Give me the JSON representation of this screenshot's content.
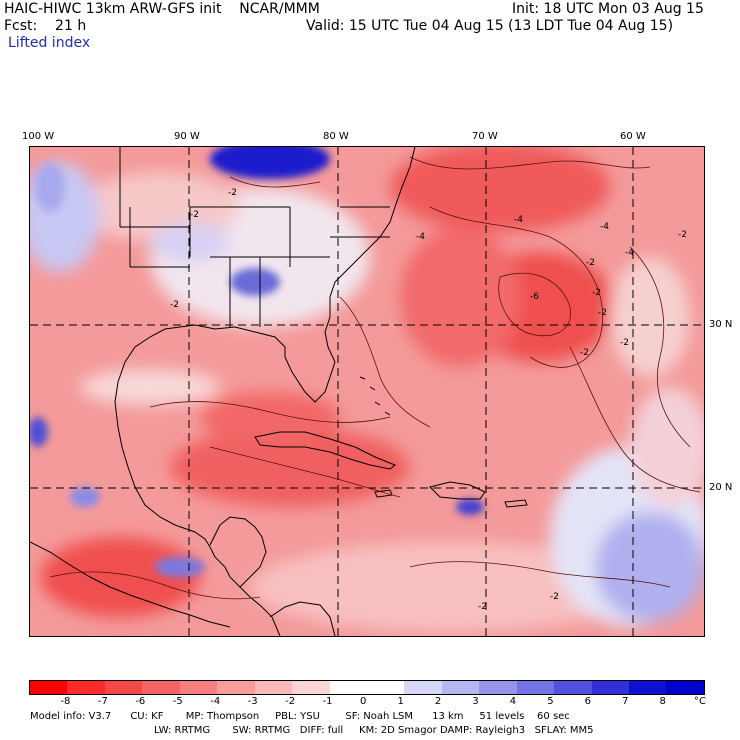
{
  "header": {
    "title_left": "HAIC-HIWC 13km ARW-GFS init    NCAR/MMM",
    "init": "Init: 18 UTC Mon 03 Aug 15",
    "fcst": "Fcst:    21 h",
    "valid": "Valid: 15 UTC Tue 04 Aug 15 (13 LDT Tue 04 Aug 15)",
    "field": "Lifted index"
  },
  "map": {
    "lon_labels": [
      "100 W",
      "90 W",
      "80 W",
      "70 W",
      "60 W"
    ],
    "lat_labels": [
      "30 N",
      "20 N"
    ],
    "contour_labels": [
      "-2",
      "-2",
      "-4",
      "-4",
      "-4",
      "-6",
      "-2",
      "-2",
      "-2",
      "-2",
      "-2",
      "-2",
      "-2",
      "-4",
      "-2",
      "-2"
    ]
  },
  "colorbar": {
    "labels": [
      "-8",
      "-7",
      "-6",
      "-5",
      "-4",
      "-3",
      "-2",
      "-1",
      "0",
      "1",
      "2",
      "3",
      "4",
      "5",
      "6",
      "7",
      "8"
    ],
    "unit": "°C",
    "colors": [
      "#ff0000",
      "#ff2a2a",
      "#f24848",
      "#f46464",
      "#f77f7f",
      "#f99c9c",
      "#fbb8b8",
      "#fdd5d5",
      "#ffffff",
      "#ffffff",
      "#d6d6f7",
      "#b6b6f1",
      "#9595eb",
      "#7474e5",
      "#5252df",
      "#3030d9",
      "#1010d3",
      "#0000cc"
    ]
  },
  "footer": {
    "line1": "Model info: V3.7      CU: KF       MP: Thompson     PBL: YSU        SF: Noah LSM      13 km     51 levels    60 sec",
    "line2": "LW: RRTMG       SW: RRTMG   DIFF: full     KM: 2D Smagor DAMP: Rayleigh3   SFLAY: MM5"
  }
}
